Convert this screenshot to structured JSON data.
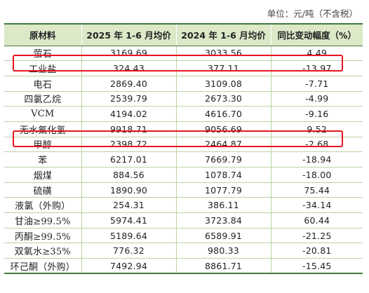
{
  "unit_note": "单位：元/吨（不含税）",
  "headers": [
    "原材料",
    "2025 年 1-6 月均价",
    "2024 年 1-6 月均价",
    "同比变动幅度（%）"
  ],
  "rows": [
    {
      "name": "萤石",
      "p2025": "3169.69",
      "p2024": "3033.56",
      "change": "4.49"
    },
    {
      "name": "工业盐",
      "p2025": "324.43",
      "p2024": "377.11",
      "change": "-13.97"
    },
    {
      "name": "电石",
      "p2025": "2869.40",
      "p2024": "3109.08",
      "change": "-7.71"
    },
    {
      "name": "四氯乙烷",
      "p2025": "2539.79",
      "p2024": "2673.30",
      "change": "-4.99"
    },
    {
      "name": "VCM",
      "p2025": "4194.02",
      "p2024": "4616.70",
      "change": "-9.16"
    },
    {
      "name": "无水氟化氢",
      "p2025": "9918.71",
      "p2024": "9056.69",
      "change": "9.52"
    },
    {
      "name": "甲醇",
      "p2025": "2398.72",
      "p2024": "2464.87",
      "change": "-2.68"
    },
    {
      "name": "苯",
      "p2025": "6217.01",
      "p2024": "7669.79",
      "change": "-18.94"
    },
    {
      "name": "烟煤",
      "p2025": "884.56",
      "p2024": "1078.74",
      "change": "-18.00"
    },
    {
      "name": "硫磺",
      "p2025": "1890.90",
      "p2024": "1077.79",
      "change": "75.44"
    },
    {
      "name": "液氯（外购）",
      "p2025": "254.31",
      "p2024": "386.11",
      "change": "-34.14"
    },
    {
      "name": "甘油≥99.5%",
      "p2025": "5974.41",
      "p2024": "3723.84",
      "change": "60.44"
    },
    {
      "name": "丙酮≥99.5%",
      "p2025": "5189.64",
      "p2024": "6589.91",
      "change": "-21.25"
    },
    {
      "name": "双氧水≥35%",
      "p2025": "776.32",
      "p2024": "980.33",
      "change": "-20.81"
    },
    {
      "name": "环己酮（外购）",
      "p2025": "7492.94",
      "p2024": "8861.71",
      "change": "-15.45"
    }
  ],
  "highlight_color": "#e8141e",
  "header_color": "#dbe9c8"
}
